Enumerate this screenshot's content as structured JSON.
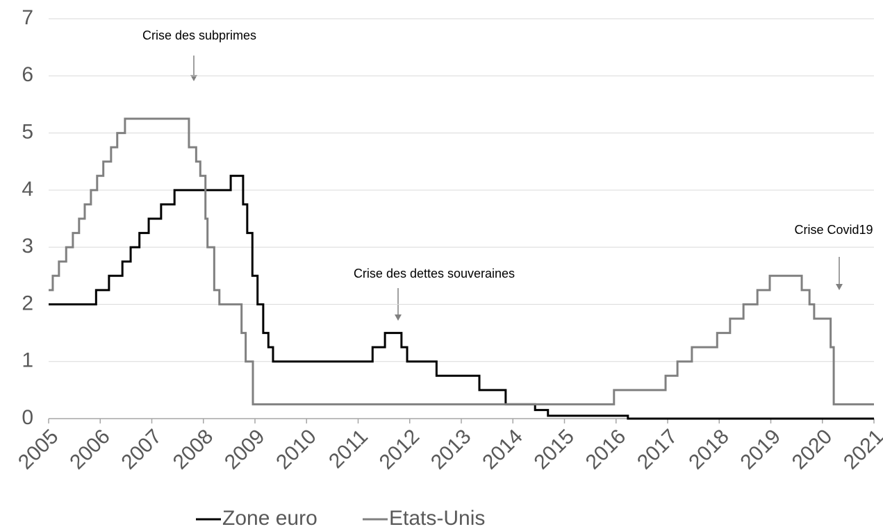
{
  "chart_data": {
    "type": "line",
    "step": true,
    "annotations": [
      "Crise des subprimes",
      "Crise des dettes souveraines",
      "Crise Covid19"
    ],
    "xlim": [
      2005,
      2021
    ],
    "xticks": [
      2005,
      2006,
      2007,
      2008,
      2009,
      2010,
      2011,
      2012,
      2013,
      2014,
      2015,
      2016,
      2017,
      2018,
      2019,
      2020,
      2021
    ],
    "ylim": [
      0,
      7
    ],
    "yticks": [
      0,
      1,
      2,
      3,
      4,
      5,
      6,
      7
    ],
    "grid": true,
    "series": [
      {
        "name": "Zone euro",
        "color": "#000000",
        "x": [
          2005,
          2005.92,
          2006.17,
          2006.43,
          2006.59,
          2006.76,
          2006.94,
          2007.18,
          2007.44,
          2008.53,
          2008.77,
          2008.85,
          2008.95,
          2009.05,
          2009.16,
          2009.26,
          2009.35,
          2011.28,
          2011.52,
          2011.84,
          2011.95,
          2012.52,
          2013.35,
          2013.86,
          2014.43,
          2014.68,
          2016.23,
          2021
        ],
        "values": [
          2.0,
          2.25,
          2.5,
          2.75,
          3.0,
          3.25,
          3.5,
          3.75,
          4.0,
          4.25,
          3.75,
          3.25,
          2.5,
          2.0,
          1.5,
          1.25,
          1.0,
          1.25,
          1.5,
          1.25,
          1.0,
          0.75,
          0.5,
          0.25,
          0.15,
          0.05,
          0,
          0
        ]
      },
      {
        "name": "Etats-Unis",
        "color": "#808080",
        "x": [
          2005,
          2005.08,
          2005.2,
          2005.34,
          2005.47,
          2005.59,
          2005.7,
          2005.82,
          2005.94,
          2006.06,
          2006.21,
          2006.33,
          2006.48,
          2007.72,
          2007.86,
          2007.94,
          2008.04,
          2008.08,
          2008.21,
          2008.31,
          2008.74,
          2008.82,
          2008.96,
          2015.96,
          2016.96,
          2017.19,
          2017.47,
          2017.96,
          2018.21,
          2018.47,
          2018.74,
          2018.98,
          2019.6,
          2019.75,
          2019.84,
          2020.16,
          2020.22,
          2021
        ],
        "values": [
          2.25,
          2.5,
          2.75,
          3.0,
          3.25,
          3.5,
          3.75,
          4.0,
          4.25,
          4.5,
          4.75,
          5.0,
          5.25,
          4.75,
          4.5,
          4.25,
          3.5,
          3.0,
          2.25,
          2.0,
          1.5,
          1.0,
          0.25,
          0.5,
          0.75,
          1.0,
          1.25,
          1.5,
          1.75,
          2.0,
          2.25,
          2.5,
          2.25,
          2.0,
          1.75,
          1.25,
          0.25,
          0.25
        ]
      }
    ]
  }
}
